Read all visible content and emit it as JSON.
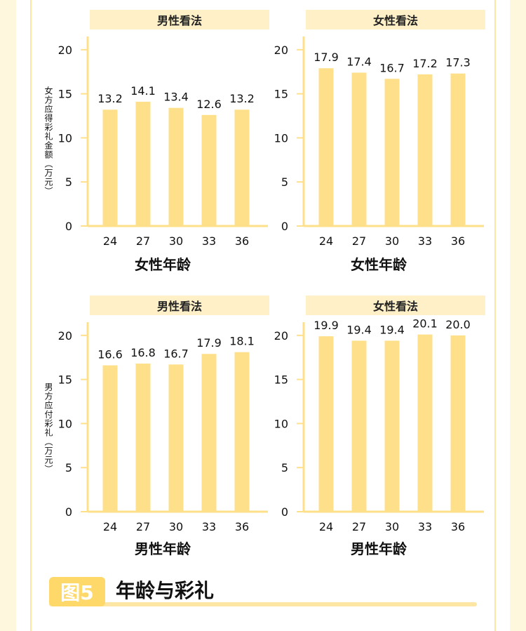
{
  "figure": {
    "badge": "图5",
    "title": "年龄与彩礼"
  },
  "colors": {
    "bar": "#ffe08a",
    "axis": "#ffe08a",
    "header_bg": "#fff0c8"
  },
  "y_axis_labels": {
    "top": "女方应得彩礼金额（万元）",
    "bottom": "男方应付彩礼（万元）"
  },
  "chart_data": [
    {
      "type": "bar",
      "title": "男性看法",
      "xlabel": "女性年龄",
      "ylabel": "女方应得彩礼金额（万元）",
      "categories": [
        "24",
        "27",
        "30",
        "33",
        "36"
      ],
      "values": [
        13.2,
        14.1,
        13.4,
        12.6,
        13.2
      ],
      "yticks": [
        0,
        5,
        10,
        15,
        20
      ],
      "ylim": [
        0,
        21.5
      ]
    },
    {
      "type": "bar",
      "title": "女性看法",
      "xlabel": "女性年龄",
      "ylabel": "",
      "categories": [
        "24",
        "27",
        "30",
        "33",
        "36"
      ],
      "values": [
        17.9,
        17.4,
        16.7,
        17.2,
        17.3
      ],
      "yticks": [
        0,
        5,
        10,
        15,
        20
      ],
      "ylim": [
        0,
        21.5
      ]
    },
    {
      "type": "bar",
      "title": "男性看法",
      "xlabel": "男性年龄",
      "ylabel": "男方应付彩礼（万元）",
      "categories": [
        "24",
        "27",
        "30",
        "33",
        "36"
      ],
      "values": [
        16.6,
        16.8,
        16.7,
        17.9,
        18.1
      ],
      "yticks": [
        0,
        5,
        10,
        15,
        20
      ],
      "ylim": [
        0,
        21.5
      ]
    },
    {
      "type": "bar",
      "title": "女性看法",
      "xlabel": "男性年龄",
      "ylabel": "",
      "categories": [
        "24",
        "27",
        "30",
        "33",
        "36"
      ],
      "values": [
        19.9,
        19.4,
        19.4,
        20.1,
        20.0
      ],
      "yticks": [
        0,
        5,
        10,
        15,
        20
      ],
      "ylim": [
        0,
        21.5
      ]
    }
  ]
}
